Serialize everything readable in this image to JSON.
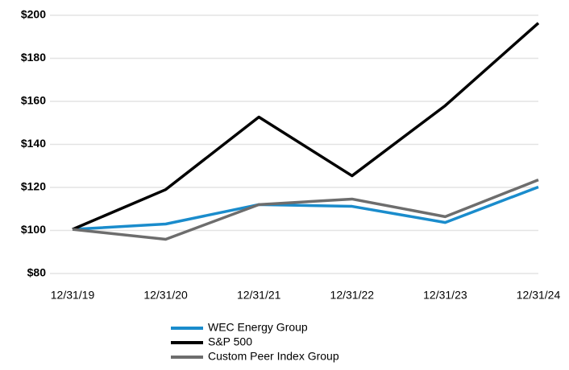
{
  "chart_data": {
    "type": "line",
    "categories": [
      "12/31/19",
      "12/31/20",
      "12/31/21",
      "12/31/22",
      "12/31/23",
      "12/31/24"
    ],
    "series": [
      {
        "name": "WEC Energy Group",
        "color": "#1a8ccc",
        "values": [
          100.5,
          103,
          112,
          111.2,
          103.7,
          120.2
        ]
      },
      {
        "name": "S&P 500",
        "color": "#000000",
        "values": [
          100.5,
          119,
          152.7,
          125.4,
          158,
          196.4
        ]
      },
      {
        "name": "Custom Peer Index Group",
        "color": "#6d6d6d",
        "values": [
          100.5,
          95.9,
          112,
          114.6,
          106.4,
          123.5
        ]
      }
    ],
    "ylim": [
      80,
      200
    ],
    "yticks": [
      {
        "value": 80,
        "label": "$80"
      },
      {
        "value": 100,
        "label": "$100"
      },
      {
        "value": 120,
        "label": "$120"
      },
      {
        "value": 140,
        "label": "$140"
      },
      {
        "value": 160,
        "label": "$160"
      },
      {
        "value": 180,
        "label": "$180"
      },
      {
        "value": 200,
        "label": "$200"
      }
    ],
    "grid": true,
    "legend": "bottom"
  }
}
